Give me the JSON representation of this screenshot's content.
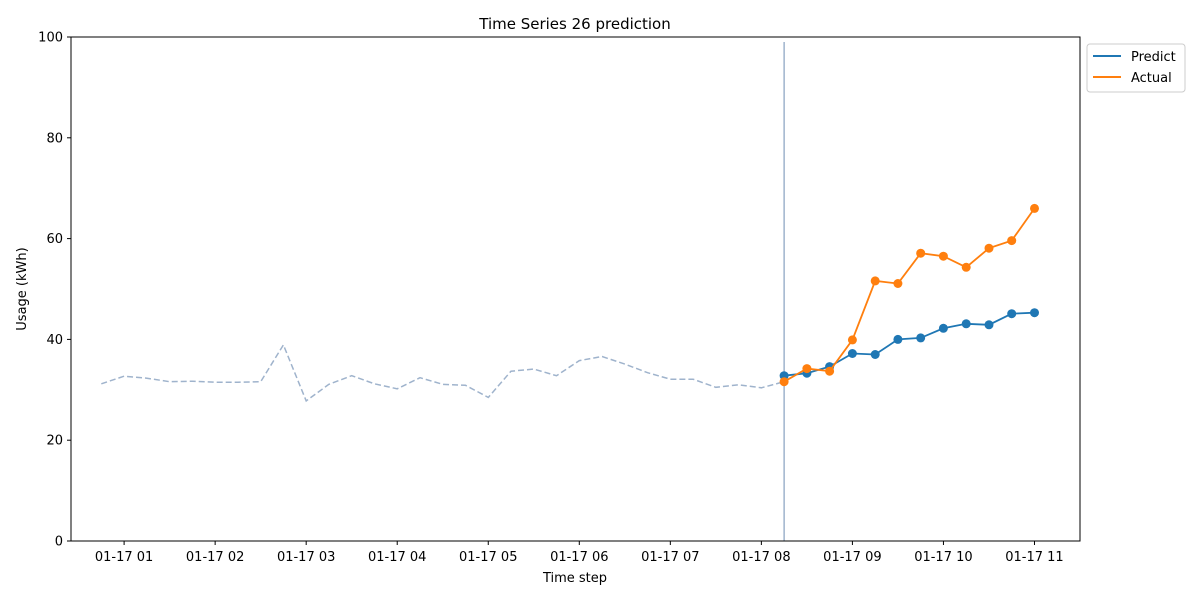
{
  "chart_data": {
    "type": "line",
    "title": "Time Series 26 prediction",
    "xlabel": "Time step",
    "ylabel": "Usage (kWh)",
    "ylim": [
      0,
      100
    ],
    "xlim": [
      "01-17 00:25",
      "01-17 11:30"
    ],
    "yticks": [
      0,
      20,
      40,
      60,
      80,
      100
    ],
    "xticks": [
      {
        "t": "01-17 01:00",
        "label": "01-17 01"
      },
      {
        "t": "01-17 02:00",
        "label": "01-17 02"
      },
      {
        "t": "01-17 03:00",
        "label": "01-17 03"
      },
      {
        "t": "01-17 04:00",
        "label": "01-17 04"
      },
      {
        "t": "01-17 05:00",
        "label": "01-17 05"
      },
      {
        "t": "01-17 06:00",
        "label": "01-17 06"
      },
      {
        "t": "01-17 07:00",
        "label": "01-17 07"
      },
      {
        "t": "01-17 08:00",
        "label": "01-17 08"
      },
      {
        "t": "01-17 09:00",
        "label": "01-17 09"
      },
      {
        "t": "01-17 10:00",
        "label": "01-17 10"
      },
      {
        "t": "01-17 11:00",
        "label": "01-17 11"
      }
    ],
    "forecast_start": "01-17 08:15",
    "legend": {
      "placement": "outside-top-right"
    },
    "grid": false,
    "history": {
      "style": "dashed",
      "color": "#9fb3cc",
      "x": [
        "01-17 00:45",
        "01-17 01:00",
        "01-17 01:15",
        "01-17 01:30",
        "01-17 01:45",
        "01-17 02:00",
        "01-17 02:15",
        "01-17 02:30",
        "01-17 02:45",
        "01-17 03:00",
        "01-17 03:15",
        "01-17 03:30",
        "01-17 03:45",
        "01-17 04:00",
        "01-17 04:15",
        "01-17 04:30",
        "01-17 04:45",
        "01-17 05:00",
        "01-17 05:15",
        "01-17 05:30",
        "01-17 05:45",
        "01-17 06:00",
        "01-17 06:15",
        "01-17 06:30",
        "01-17 06:45",
        "01-17 07:00",
        "01-17 07:15",
        "01-17 07:30",
        "01-17 07:45",
        "01-17 08:00",
        "01-17 08:15"
      ],
      "values": [
        31.2,
        32.7,
        32.3,
        31.6,
        31.7,
        31.5,
        31.5,
        31.6,
        38.9,
        27.8,
        31.1,
        32.8,
        31.2,
        30.2,
        32.4,
        31.1,
        30.9,
        28.5,
        33.7,
        34.1,
        32.8,
        35.8,
        36.6,
        35.1,
        33.4,
        32.1,
        32.1,
        30.5,
        31.0,
        30.4,
        31.6
      ]
    },
    "series": [
      {
        "name": "Predict",
        "color": "#1f77b4",
        "x": [
          "01-17 08:15",
          "01-17 08:30",
          "01-17 08:45",
          "01-17 09:00",
          "01-17 09:15",
          "01-17 09:30",
          "01-17 09:45",
          "01-17 10:00",
          "01-17 10:15",
          "01-17 10:30",
          "01-17 10:45",
          "01-17 11:00"
        ],
        "values": [
          32.8,
          33.3,
          34.6,
          37.2,
          37.0,
          40.0,
          40.3,
          42.2,
          43.1,
          42.9,
          45.1,
          45.3
        ]
      },
      {
        "name": "Actual",
        "color": "#ff7f0e",
        "x": [
          "01-17 08:15",
          "01-17 08:30",
          "01-17 08:45",
          "01-17 09:00",
          "01-17 09:15",
          "01-17 09:30",
          "01-17 09:45",
          "01-17 10:00",
          "01-17 10:15",
          "01-17 10:30",
          "01-17 10:45",
          "01-17 11:00"
        ],
        "values": [
          31.6,
          34.2,
          33.7,
          39.9,
          51.6,
          51.1,
          57.1,
          56.5,
          54.3,
          58.1,
          59.6,
          66.0
        ]
      }
    ]
  }
}
